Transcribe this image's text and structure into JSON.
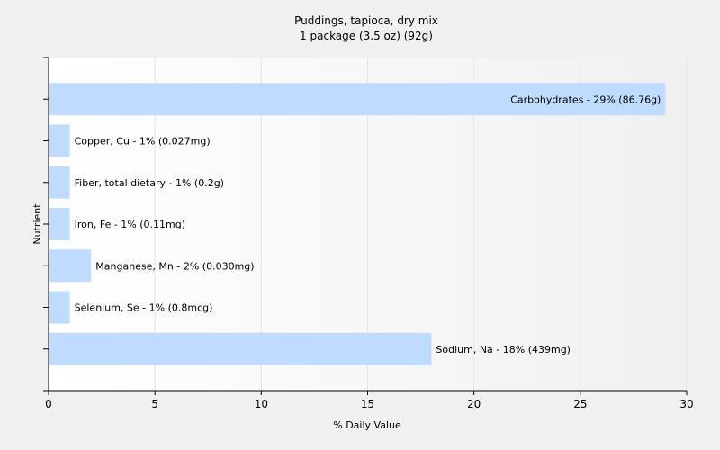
{
  "chart_data": {
    "type": "bar",
    "orientation": "horizontal",
    "title": "Puddings, tapioca, dry mix",
    "subtitle": "1 package (3.5 oz) (92g)",
    "xlabel": "% Daily Value",
    "ylabel": "Nutrient",
    "xlim": [
      0,
      30
    ],
    "xticks": [
      0,
      5,
      10,
      15,
      20,
      25,
      30
    ],
    "grid": true,
    "legend": "none",
    "bar_color": "#bfdcff",
    "categories": [
      "Carbohydrates",
      "Copper, Cu",
      "Fiber, total dietary",
      "Iron, Fe",
      "Manganese, Mn",
      "Selenium, Se",
      "Sodium, Na"
    ],
    "values": [
      29,
      1,
      1,
      1,
      2,
      1,
      18
    ],
    "labels": [
      "Carbohydrates - 29% (86.76g)",
      "Copper, Cu - 1% (0.027mg)",
      "Fiber, total dietary - 1% (0.2g)",
      "Iron, Fe - 1% (0.11mg)",
      "Manganese, Mn - 2% (0.030mg)",
      "Selenium, Se - 1% (0.8mcg)",
      "Sodium, Na - 18% (439mg)"
    ]
  }
}
